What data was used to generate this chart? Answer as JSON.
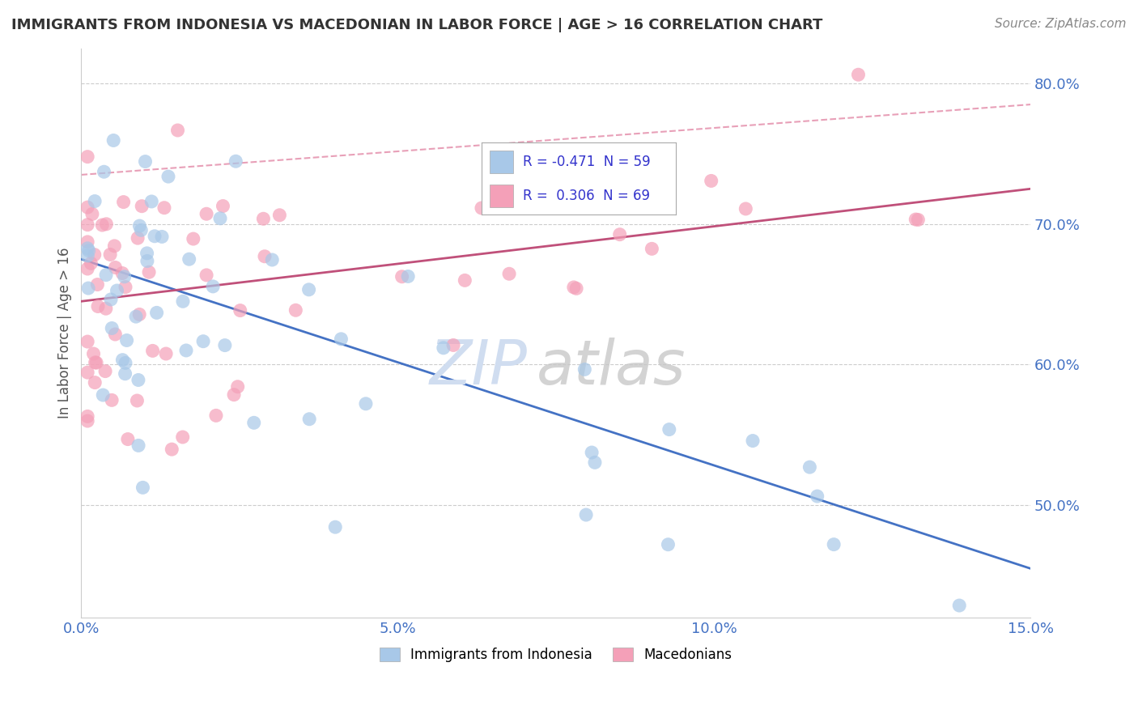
{
  "title": "IMMIGRANTS FROM INDONESIA VS MACEDONIAN IN LABOR FORCE | AGE > 16 CORRELATION CHART",
  "source": "Source: ZipAtlas.com",
  "ylabel": "In Labor Force | Age > 16",
  "ylim": [
    0.42,
    0.825
  ],
  "xlim": [
    0.0,
    0.15
  ],
  "yticks": [
    0.5,
    0.6,
    0.7,
    0.8
  ],
  "ytick_labels": [
    "50.0%",
    "60.0%",
    "70.0%",
    "80.0%"
  ],
  "xticks": [
    0.0,
    0.05,
    0.1,
    0.15
  ],
  "xtick_labels": [
    "0.0%",
    "5.0%",
    "10.0%",
    "15.0%"
  ],
  "series1_name": "Immigrants from Indonesia",
  "series1_R": -0.471,
  "series1_N": 59,
  "series1_color": "#a8c8e8",
  "series1_line_color": "#4472c4",
  "series2_name": "Macedonians",
  "series2_R": 0.306,
  "series2_N": 69,
  "series2_color": "#f4a0b8",
  "series2_line_color": "#c0507a",
  "series2_dash_color": "#e8a0b8",
  "background_color": "#ffffff",
  "grid_color": "#cccccc",
  "legend_R_color": "#3333cc",
  "title_color": "#333333",
  "source_color": "#888888",
  "ylabel_color": "#555555",
  "tick_color": "#4472c4",
  "watermark_zip_color": "#d0ddf0",
  "watermark_atlas_color": "#c8c8c8",
  "blue_line_x0": 0.0,
  "blue_line_y0": 0.675,
  "blue_line_x1": 0.15,
  "blue_line_y1": 0.455,
  "pink_line_x0": 0.0,
  "pink_line_y0": 0.645,
  "pink_line_x1": 0.15,
  "pink_line_y1": 0.725,
  "dash_line_x0": 0.0,
  "dash_line_y0": 0.735,
  "dash_line_x1": 0.15,
  "dash_line_y1": 0.785
}
